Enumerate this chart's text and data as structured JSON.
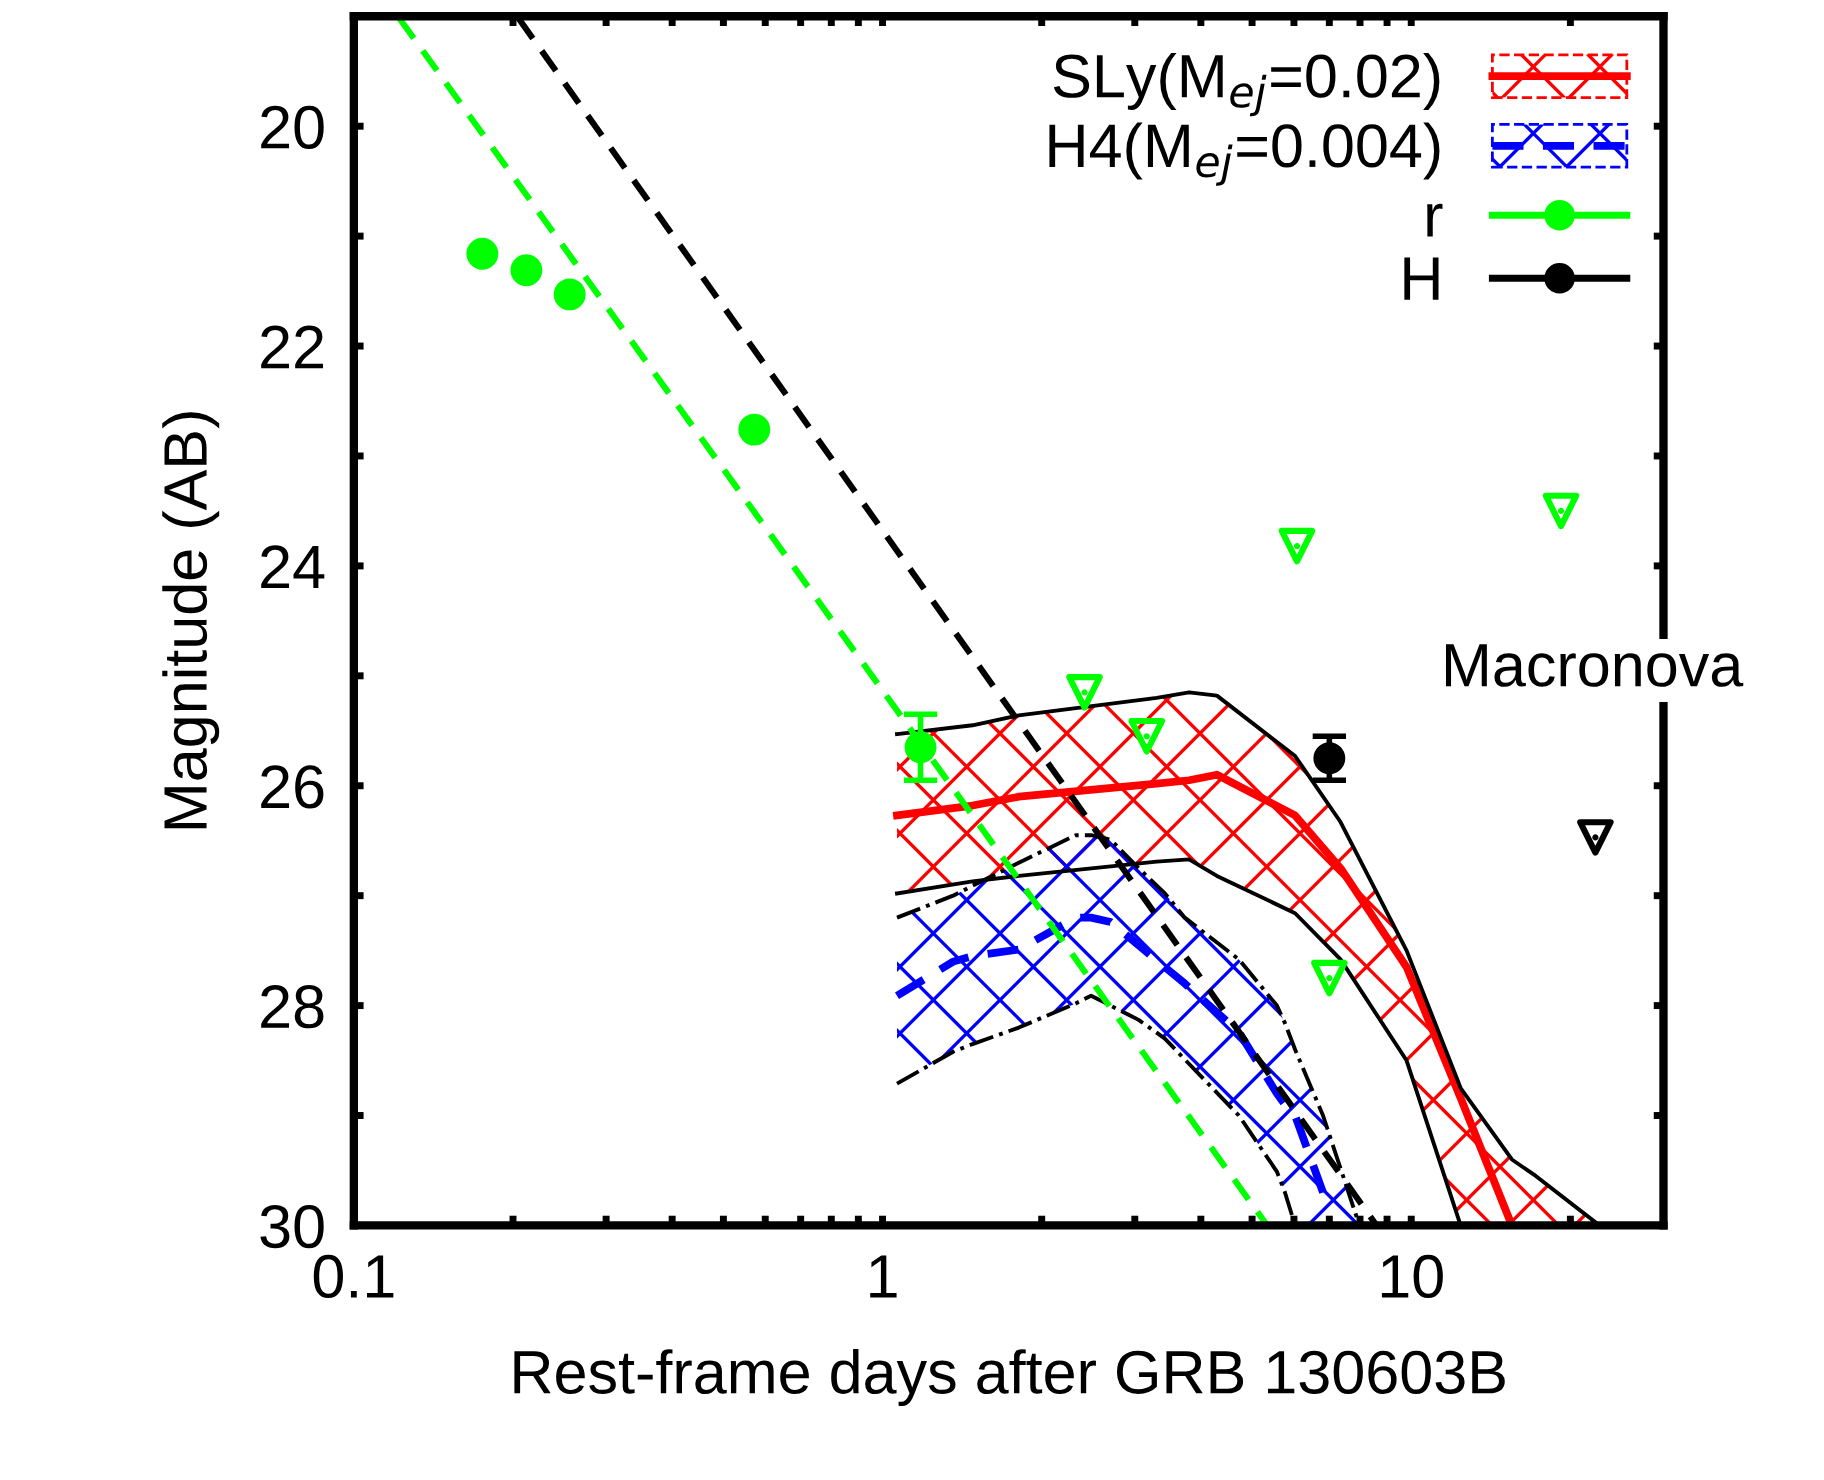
{
  "chart_data": {
    "type": "line",
    "xlabel": "Rest-frame days after GRB 130603B",
    "ylabel": "Magnitude (AB)",
    "log": "x",
    "xlim": [
      0.1,
      30
    ],
    "ylim": [
      30,
      19
    ],
    "xticks": [
      0.1,
      {
        "value": 0.2,
        "label": null
      },
      {
        "value": 0.3,
        "label": null
      },
      {
        "value": 0.4,
        "label": null
      },
      {
        "value": 0.5,
        "label": null
      },
      {
        "value": 0.6,
        "label": null
      },
      {
        "value": 0.7,
        "label": null
      },
      {
        "value": 0.8,
        "label": null
      },
      {
        "value": 0.9,
        "label": null
      },
      1,
      {
        "value": 2,
        "label": null
      },
      {
        "value": 3,
        "label": null
      },
      {
        "value": 4,
        "label": null
      },
      {
        "value": 5,
        "label": null
      },
      {
        "value": 6,
        "label": null
      },
      {
        "value": 7,
        "label": null
      },
      {
        "value": 8,
        "label": null
      },
      {
        "value": 9,
        "label": null
      },
      10,
      {
        "value": 20,
        "label": null
      }
    ],
    "yticks": [
      20,
      {
        "value": 21,
        "label": null
      },
      22,
      {
        "value": 23,
        "label": null
      },
      24,
      {
        "value": 25,
        "label": null
      },
      26,
      {
        "value": 27,
        "label": null
      },
      28,
      {
        "value": 29,
        "label": null
      },
      30
    ],
    "grid": false,
    "legend": "top right",
    "series": [
      {
        "name": "SLy(M$_{ej}$=0.02)",
        "color": "#ff0000",
        "line_style": "solid",
        "x": [
          1.065,
          1.48,
          1.81,
          3.3,
          3.8,
          4.29,
          6.03,
          7.35,
          9.8,
          12.4,
          15.5,
          17.2,
          22.7
        ],
        "values": [
          26.27,
          26.18,
          26.1,
          25.98,
          25.95,
          25.9,
          26.27,
          26.75,
          27.65,
          28.84,
          30,
          null,
          null
        ],
        "upper": [
          25.53,
          25.45,
          25.36,
          25.2,
          25.15,
          25.18,
          25.73,
          26.33,
          27.5,
          28.75,
          29.4,
          29.55,
          30
        ],
        "lower": [
          26.98,
          26.87,
          26.82,
          26.69,
          26.67,
          26.82,
          27.16,
          27.58,
          28.5,
          30,
          30,
          30,
          30
        ]
      },
      {
        "name": "H4(M$_{ej}$=0.004)",
        "color": "#0000ff",
        "line_style": "dashed",
        "x": [
          1.065,
          1.36,
          1.48,
          1.81,
          2.32,
          2.48,
          2.7,
          3.05,
          3.42,
          3.73,
          4.72,
          5.57,
          5.77,
          6.03,
          6.81,
          7.98
        ],
        "values": [
          27.91,
          27.6,
          27.55,
          27.49,
          27.2,
          27.2,
          27.24,
          27.45,
          27.65,
          27.8,
          28.24,
          28.8,
          28.9,
          29.0,
          29.7,
          null
        ],
        "upper": [
          27.2,
          27.0,
          26.91,
          26.7,
          26.45,
          26.45,
          26.49,
          26.75,
          26.98,
          27.2,
          27.58,
          28.0,
          28.16,
          28.4,
          29.0,
          30
        ],
        "lower": [
          28.71,
          28.42,
          28.35,
          28.2,
          27.98,
          27.91,
          28.0,
          28.13,
          28.3,
          28.49,
          29.0,
          29.51,
          29.7,
          30,
          30,
          30
        ]
      },
      {
        "color": "#000000",
        "line_style": "solid",
        "x": [
          1.065,
          1.48,
          1.81,
          3.3,
          3.8,
          4.29,
          6.03,
          7.35,
          9.8,
          12.4,
          15.5,
          17.2,
          22.7
        ],
        "values": [
          25.53,
          25.45,
          25.36,
          25.2,
          25.15,
          25.18,
          25.73,
          26.33,
          27.5,
          28.75,
          29.4,
          29.55,
          30
        ]
      },
      {
        "color": "#000000",
        "line_style": "solid",
        "x": [
          1.065,
          1.48,
          1.81,
          3.3,
          3.8,
          4.29,
          6.03,
          7.35,
          9.8,
          12.4
        ],
        "values": [
          26.98,
          26.87,
          26.82,
          26.69,
          26.67,
          26.82,
          27.16,
          27.58,
          28.5,
          30
        ]
      },
      {
        "color": "#000000",
        "line_style": "dashdot",
        "x": [
          1.065,
          1.36,
          1.48,
          1.81,
          2.32,
          2.48,
          2.7,
          3.05,
          3.42,
          3.73,
          4.72,
          5.57,
          5.77,
          6.03,
          6.81,
          7.98
        ],
        "values": [
          27.2,
          27.0,
          26.91,
          26.7,
          26.45,
          26.45,
          26.49,
          26.75,
          26.98,
          27.2,
          27.58,
          28.0,
          28.16,
          28.4,
          29.0,
          30
        ]
      },
      {
        "color": "#000000",
        "line_style": "dashdot",
        "x": [
          1.065,
          1.36,
          1.48,
          1.81,
          2.32,
          2.48,
          2.7,
          3.05,
          3.42,
          3.73,
          4.72,
          5.57,
          5.77,
          6.03
        ],
        "values": [
          28.71,
          28.42,
          28.35,
          28.2,
          27.98,
          27.91,
          28.0,
          28.13,
          28.3,
          28.49,
          29.0,
          29.51,
          29.7,
          30
        ]
      },
      {
        "color": "#000000",
        "line_style": "dashed",
        "x": [
          0.205,
          8.6
        ],
        "values": [
          19.02,
          30
        ]
      },
      {
        "color": "#00ff00",
        "line_style": "dashed",
        "x": [
          0.122,
          5.34
        ],
        "values": [
          19.02,
          30
        ]
      },
      {
        "type": "scatter",
        "name": "r",
        "color": "#00ff00",
        "marker": "circle",
        "x": [
          0.175,
          0.212,
          0.256,
          0.572,
          1.18
        ],
        "values": [
          21.16,
          21.31,
          21.53,
          22.76,
          25.65
        ],
        "errors": [
          null,
          null,
          null,
          null,
          0.3
        ]
      },
      {
        "type": "scatter",
        "name": "H",
        "color": "#000000",
        "marker": "circle",
        "x": [
          7.0
        ],
        "values": [
          25.75
        ],
        "errors": [
          0.2
        ]
      },
      {
        "type": "scatter",
        "color": "#00ff00",
        "marker": "triangle",
        "x": [
          2.41,
          3.16,
          6.08,
          7.0,
          19.2
        ],
        "values": [
          25.15,
          25.55,
          23.82,
          27.75,
          23.5
        ]
      },
      {
        "type": "scatter",
        "color": "#000000",
        "marker": "triangle",
        "x": [
          22.3
        ],
        "values": [
          26.47
        ]
      }
    ],
    "annotations": [
      "Macronova"
    ]
  }
}
